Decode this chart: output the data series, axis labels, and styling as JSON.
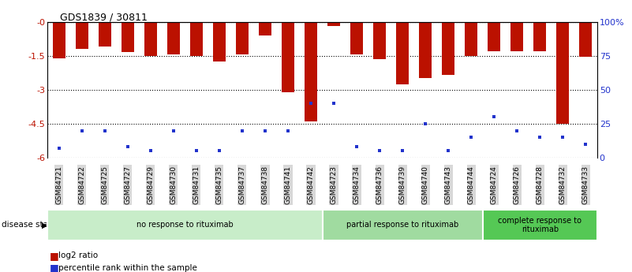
{
  "title": "GDS1839 / 30811",
  "samples": [
    "GSM84721",
    "GSM84722",
    "GSM84725",
    "GSM84727",
    "GSM84729",
    "GSM84730",
    "GSM84731",
    "GSM84735",
    "GSM84737",
    "GSM84738",
    "GSM84741",
    "GSM84742",
    "GSM84723",
    "GSM84734",
    "GSM84736",
    "GSM84739",
    "GSM84740",
    "GSM84743",
    "GSM84744",
    "GSM84724",
    "GSM84726",
    "GSM84728",
    "GSM84732",
    "GSM84733"
  ],
  "log2_values": [
    -1.6,
    -1.2,
    -1.1,
    -1.35,
    -1.5,
    -1.45,
    -1.5,
    -1.75,
    -1.45,
    -0.6,
    -3.1,
    -4.4,
    -0.2,
    -1.45,
    -1.65,
    -2.75,
    -2.5,
    -2.35,
    -1.5,
    -1.3,
    -1.3,
    -1.3,
    -4.5,
    -1.55
  ],
  "percentile_ranks": [
    7,
    20,
    20,
    8,
    5,
    20,
    5,
    5,
    20,
    20,
    20,
    40,
    40,
    8,
    5,
    5,
    25,
    5,
    15,
    30,
    20,
    15,
    15,
    10
  ],
  "groups": [
    {
      "label": "no response to rituximab",
      "start": 0,
      "end": 12,
      "color": "#c8edc9"
    },
    {
      "label": "partial response to rituximab",
      "start": 12,
      "end": 19,
      "color": "#a0dba0"
    },
    {
      "label": "complete response to\nrituximab",
      "start": 19,
      "end": 24,
      "color": "#55c855"
    }
  ],
  "bar_color": "#bb1100",
  "dot_color": "#2233cc",
  "ylim_left": [
    -6.0,
    0.0
  ],
  "ylim_right": [
    0,
    100
  ],
  "yticks_left": [
    -6.0,
    -4.5,
    -3.0,
    -1.5,
    0.0
  ],
  "ytick_labels_left": [
    "-6",
    "-4.5",
    "-3",
    "-1.5",
    "-0"
  ],
  "yticks_right": [
    0,
    25,
    50,
    75,
    100
  ],
  "ytick_labels_right": [
    "0",
    "25",
    "50",
    "75",
    "100%"
  ],
  "bar_color_hex": "#bb1100",
  "dot_color_hex": "#2233cc",
  "legend_items": [
    "log2 ratio",
    "percentile rank within the sample"
  ],
  "background_color": "#ffffff",
  "bar_width": 0.55
}
